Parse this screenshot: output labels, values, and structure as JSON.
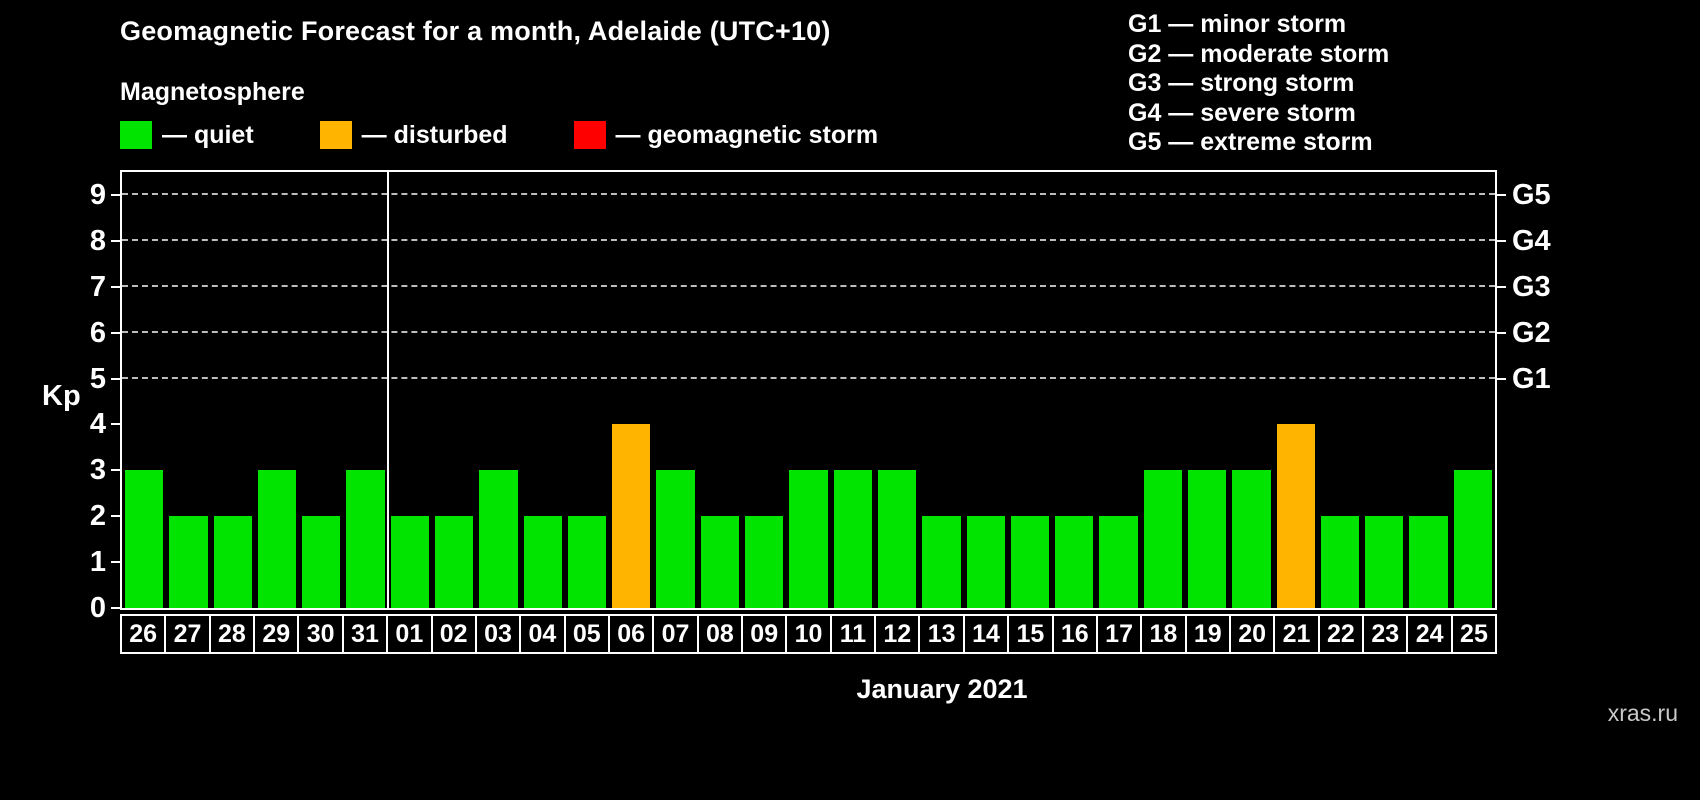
{
  "title": "Geomagnetic Forecast for a month, Adelaide (UTC+10)",
  "subtitle": "Magnetosphere",
  "watermark": "xras.ru",
  "colors": {
    "quiet": "#00e400",
    "disturbed": "#ffb400",
    "storm": "#ff0000",
    "background": "#000000",
    "axis": "#ffffff",
    "gridline": "#bdbdbd"
  },
  "legend": [
    {
      "key": "quiet",
      "label": "— quiet",
      "color": "#00e400"
    },
    {
      "key": "disturbed",
      "label": "— disturbed",
      "color": "#ffb400"
    },
    {
      "key": "storm",
      "label": "— geomagnetic storm",
      "color": "#ff0000"
    }
  ],
  "storm_scale": [
    {
      "code": "G1",
      "label": "G1 — minor storm",
      "kp": 5
    },
    {
      "code": "G2",
      "label": "G2 — moderate storm",
      "kp": 6
    },
    {
      "code": "G3",
      "label": "G3 — strong storm",
      "kp": 7
    },
    {
      "code": "G4",
      "label": "G4 — severe storm",
      "kp": 8
    },
    {
      "code": "G5",
      "label": "G5 — extreme storm",
      "kp": 9
    }
  ],
  "chart_data": {
    "type": "bar",
    "title": "Geomagnetic Forecast for a month, Adelaide (UTC+10)",
    "xlabel": "January 2021",
    "ylabel": "Kp",
    "ylim": [
      0,
      9.5
    ],
    "yticks": [
      0,
      1,
      2,
      3,
      4,
      5,
      6,
      7,
      8,
      9
    ],
    "grid": "dashed horizontal lines at Kp 5-9 (G1-G5 levels)",
    "legend_position": "top-left",
    "right_axis_ticks": [
      {
        "label": "G1",
        "value": 5
      },
      {
        "label": "G2",
        "value": 6
      },
      {
        "label": "G3",
        "value": 7
      },
      {
        "label": "G4",
        "value": 8
      },
      {
        "label": "G5",
        "value": 9
      }
    ],
    "categories": [
      "26",
      "27",
      "28",
      "29",
      "30",
      "31",
      "01",
      "02",
      "03",
      "04",
      "05",
      "06",
      "07",
      "08",
      "09",
      "10",
      "11",
      "12",
      "13",
      "14",
      "15",
      "16",
      "17",
      "18",
      "19",
      "20",
      "21",
      "22",
      "23",
      "24",
      "25"
    ],
    "values": [
      3,
      2,
      2,
      3,
      2,
      3,
      2,
      2,
      3,
      2,
      2,
      4,
      3,
      2,
      2,
      3,
      3,
      3,
      2,
      2,
      2,
      2,
      2,
      3,
      3,
      3,
      4,
      2,
      2,
      2,
      3
    ],
    "statuses": [
      "quiet",
      "quiet",
      "quiet",
      "quiet",
      "quiet",
      "quiet",
      "quiet",
      "quiet",
      "quiet",
      "quiet",
      "quiet",
      "disturbed",
      "quiet",
      "quiet",
      "quiet",
      "quiet",
      "quiet",
      "quiet",
      "quiet",
      "quiet",
      "quiet",
      "quiet",
      "quiet",
      "quiet",
      "quiet",
      "quiet",
      "disturbed",
      "quiet",
      "quiet",
      "quiet",
      "quiet"
    ],
    "month_separator_after_index": 5
  }
}
